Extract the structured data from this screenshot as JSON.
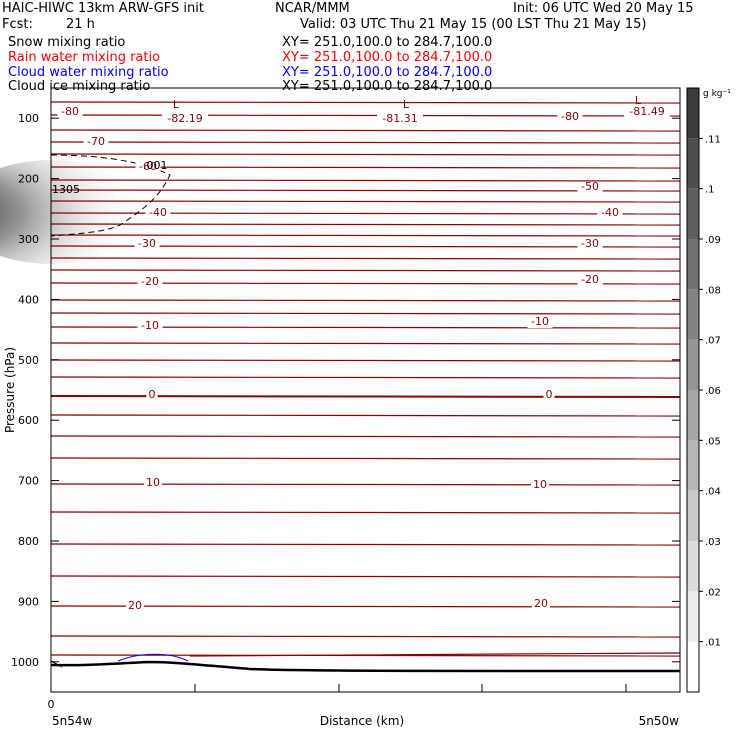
{
  "header": {
    "title": "HAIC-HIWC 13km ARW-GFS init",
    "org": "NCAR/MMM",
    "init": "Init: 06 UTC Wed 20 May 15",
    "fcst_label": "Fcst:",
    "fcst_value": "21 h",
    "valid": "Valid: 03 UTC Thu 21 May 15 (00 LST Thu 21 May 15)",
    "fields": [
      {
        "label": "Snow mixing ratio",
        "xy": "XY= 251.0,100.0 to 284.7,100.0",
        "color": "#000000"
      },
      {
        "label": "Rain water mixing ratio",
        "xy": "XY= 251.0,100.0 to 284.7,100.0",
        "color": "#ff0000"
      },
      {
        "label": "Cloud water mixing ratio",
        "xy": "XY= 251.0,100.0 to 284.7,100.0",
        "color": "#0000ff"
      },
      {
        "label": "Cloud ice mixing ratio",
        "xy": "XY= 251.0,100.0 to 284.7,100.0",
        "color": "#000000"
      }
    ]
  },
  "chart_data": {
    "type": "heatmap",
    "ylabel": "Pressure (hPa)",
    "xlabel": "Distance (km)",
    "x_start_label": "5n54w",
    "x_end_label": "5n50w",
    "x_zero_label": "0",
    "yticks": [
      100,
      200,
      300,
      400,
      500,
      600,
      700,
      800,
      900,
      1000
    ],
    "colorbar": {
      "unit": "g kg⁻¹",
      "levels": [
        ".01",
        ".02",
        ".03",
        ".04",
        ".05",
        ".06",
        ".07",
        ".08",
        ".09",
        ".1",
        ".11"
      ]
    },
    "temperature_contours": [
      {
        "label": "-80",
        "values": [
          -80,
          -82.19,
          -81.31,
          -81.49
        ]
      },
      {
        "label": "-70"
      },
      {
        "label": "-60"
      },
      {
        "label": "-50"
      },
      {
        "label": "-40"
      },
      {
        "label": "-30"
      },
      {
        "label": "-20"
      },
      {
        "label": "-10"
      },
      {
        "label": "0"
      },
      {
        "label": "10"
      },
      {
        "label": "20"
      }
    ],
    "low_labels": [
      "L",
      "L",
      "L"
    ],
    "low_values": [
      "-82.19",
      "-81.31",
      "-81.49"
    ],
    "annotations": [
      "1305",
      ".001"
    ],
    "contour_color": "#8b0000"
  }
}
